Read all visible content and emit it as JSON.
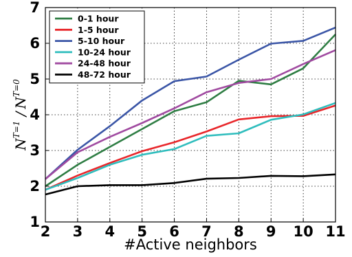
{
  "chart_data": {
    "type": "line",
    "xlabel": "#Active neighbors",
    "ylabel": {
      "n": "N",
      "sup1": "T=1",
      "slash": " /",
      "sup0": "T=0"
    },
    "x": [
      2,
      3,
      4,
      5,
      6,
      7,
      8,
      9,
      10,
      11
    ],
    "xlim": [
      2,
      11
    ],
    "ylim": [
      1,
      7
    ],
    "xticks": [
      "2",
      "3",
      "4",
      "5",
      "6",
      "7",
      "8",
      "9",
      "10",
      "11"
    ],
    "yticks": [
      "1",
      "2",
      "3",
      "4",
      "5",
      "6",
      "7"
    ],
    "grid": true,
    "legend_position": "top-left",
    "series": [
      {
        "name": "0-1 hour",
        "color": "#2e7d43",
        "values": [
          2.0,
          2.6,
          3.1,
          3.6,
          4.1,
          4.35,
          4.95,
          4.85,
          5.3,
          6.25
        ]
      },
      {
        "name": "1-5 hour",
        "color": "#e8262a",
        "values": [
          1.9,
          2.3,
          2.65,
          2.98,
          3.23,
          3.53,
          3.87,
          3.96,
          3.97,
          4.26
        ]
      },
      {
        "name": "5-10 hour",
        "color": "#3a55a6",
        "values": [
          2.2,
          3.02,
          3.68,
          4.4,
          4.94,
          5.07,
          5.54,
          5.99,
          6.07,
          6.44
        ]
      },
      {
        "name": "10-24 hour",
        "color": "#2fbdbd",
        "values": [
          1.9,
          2.23,
          2.6,
          2.88,
          3.04,
          3.41,
          3.48,
          3.86,
          4.01,
          4.33
        ]
      },
      {
        "name": "24-48 hour",
        "color": "#a04aa0",
        "values": [
          2.2,
          2.95,
          3.38,
          3.77,
          4.18,
          4.63,
          4.89,
          5.0,
          5.42,
          5.81
        ]
      },
      {
        "name": "48-72 hour",
        "color": "#000000",
        "values": [
          1.77,
          2.0,
          2.03,
          2.03,
          2.09,
          2.21,
          2.23,
          2.29,
          2.28,
          2.33
        ]
      }
    ]
  }
}
